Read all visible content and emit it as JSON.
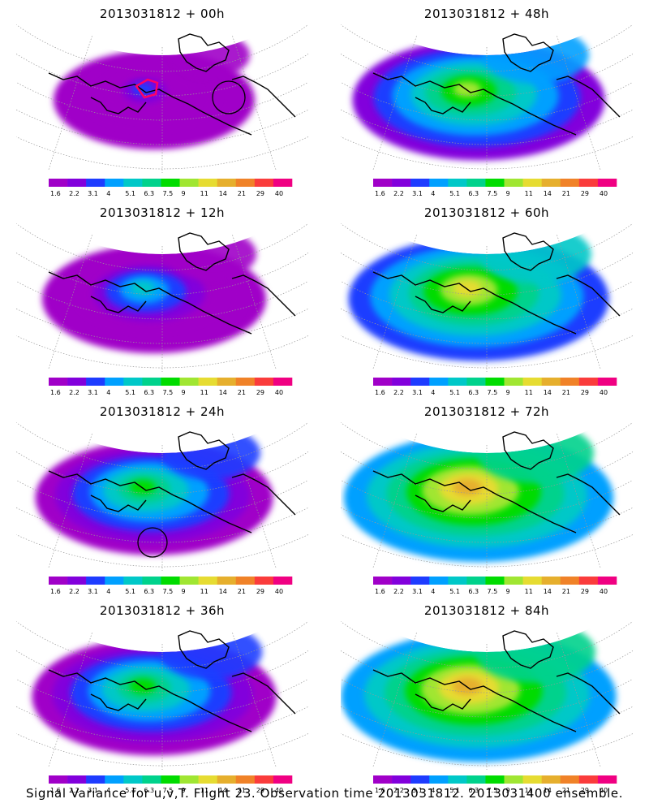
{
  "caption": "Signal Variance for u,v,T. Flight 23. Observation time 2013031812. 2013031400 ensemble.",
  "colorbar": {
    "labels": [
      "1.6",
      "2.2",
      "3.1",
      "4",
      "5.1",
      "6.3",
      "7.5",
      "9",
      "11",
      "14",
      "21",
      "29",
      "40"
    ],
    "colors": [
      "#a000c8",
      "#8200dc",
      "#1e3cff",
      "#00a0ff",
      "#00c8c8",
      "#00d28c",
      "#00dc00",
      "#a0e632",
      "#e6dc32",
      "#e6af2d",
      "#f08228",
      "#fa3c3c",
      "#f00082"
    ]
  },
  "map_colors": {
    "land_outline": "#000000",
    "grid_lines": "#999999",
    "track": "#ff0066"
  },
  "panels": [
    {
      "title": "2013031812 + 00h",
      "level": 0.2,
      "circle": "bc",
      "track": true
    },
    {
      "title": "2013031812 + 48h",
      "level": 0.65,
      "circle": "",
      "track": false
    },
    {
      "title": "2013031812 + 12h",
      "level": 0.4,
      "circle": "",
      "track": false
    },
    {
      "title": "2013031812 + 60h",
      "level": 0.72,
      "circle": "",
      "track": false
    },
    {
      "title": "2013031812 + 24h",
      "level": 0.52,
      "circle": "pac",
      "track": false
    },
    {
      "title": "2013031812 + 72h",
      "level": 0.8,
      "circle": "",
      "track": false
    },
    {
      "title": "2013031812 + 36h",
      "level": 0.58,
      "circle": "",
      "track": false
    },
    {
      "title": "2013031812 + 84h",
      "level": 0.85,
      "circle": "",
      "track": false
    }
  ]
}
